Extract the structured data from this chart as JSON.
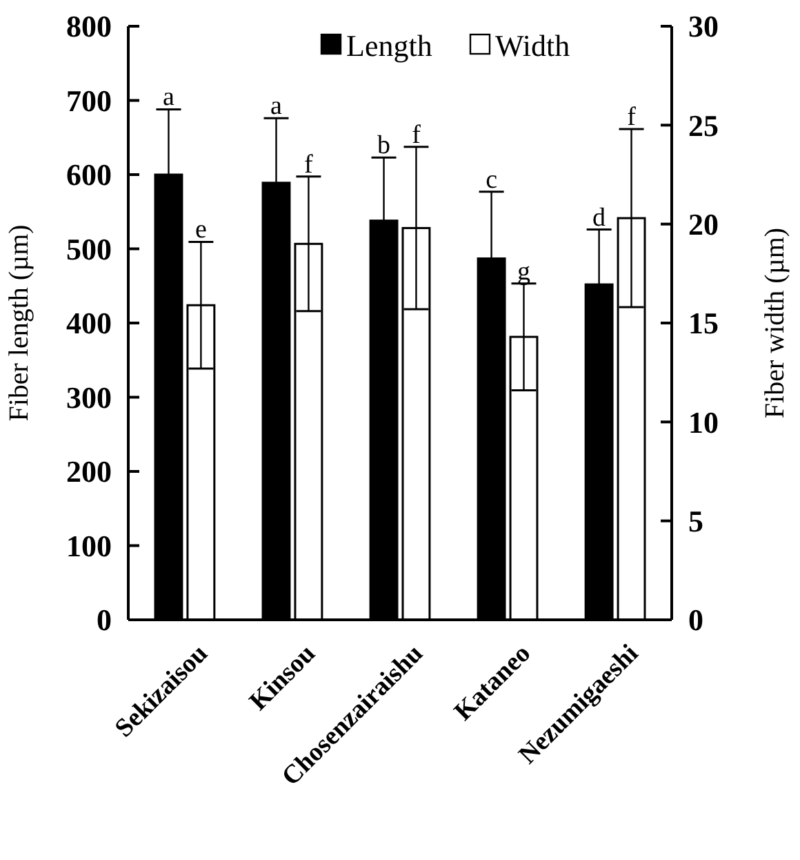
{
  "chart_data": {
    "type": "bar",
    "categories": [
      "Sekizaisou",
      "Kinsou",
      "Chosenzairaishu",
      "Kataneo",
      "Nezumigaeshi"
    ],
    "ylabel": "Fiber length (µm)",
    "y2label": "Fiber width (µm)",
    "series": [
      {
        "name": "Length",
        "color": "#000000",
        "values": [
          600,
          589,
          538,
          487,
          452
        ],
        "errors": [
          88,
          87,
          85,
          90,
          74
        ]
      },
      {
        "name": "Width",
        "color": "#ffffff",
        "axis": "y2",
        "values": [
          15.9,
          19.0,
          19.8,
          14.3,
          20.3
        ],
        "errors": [
          3.2,
          3.4,
          4.1,
          2.7,
          4.5
        ]
      }
    ],
    "annotations": [
      "a",
      "a",
      "b",
      "c",
      "d",
      "e",
      "f",
      "f",
      "g",
      "f"
    ],
    "ylim": [
      0,
      800
    ],
    "yticks": [
      0,
      100,
      200,
      300,
      400,
      500,
      600,
      700,
      800
    ],
    "y2lim": [
      0,
      30
    ],
    "y2ticks": [
      0,
      5,
      10,
      15,
      20,
      25,
      30
    ],
    "legend": "top",
    "grid": false
  }
}
